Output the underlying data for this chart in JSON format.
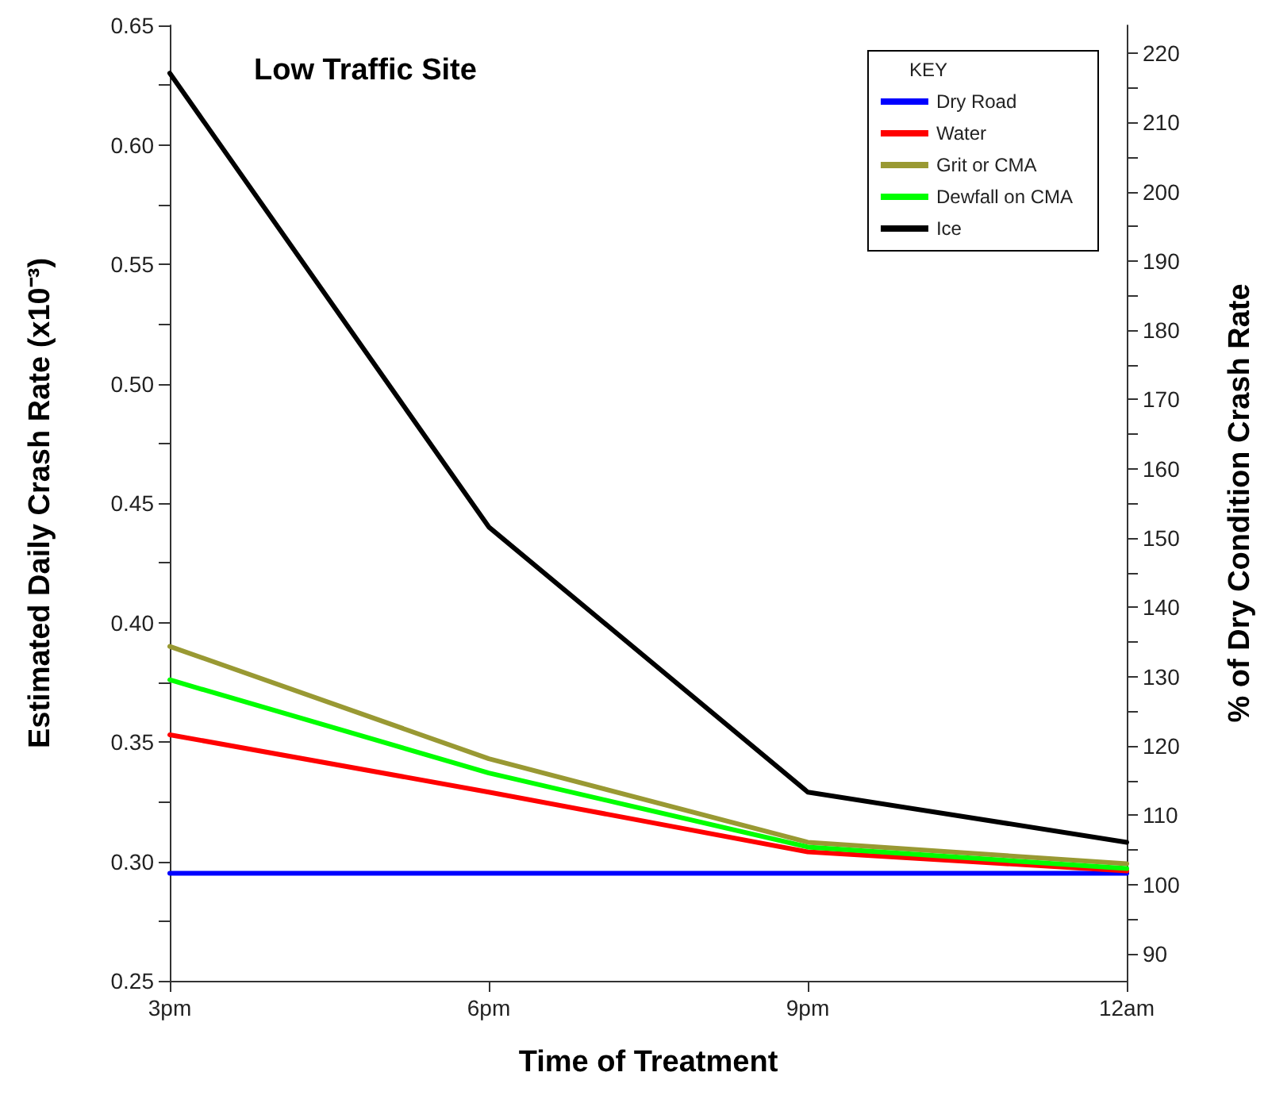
{
  "chart_data": {
    "type": "line",
    "title": "Low Traffic Site",
    "xlabel": "Time of Treatment",
    "ylabel": "Estimated Daily Crash Rate (x10⁻³)",
    "y2label": "% of Dry Condition Crash Rate",
    "legend_title": "KEY",
    "categories": [
      "3pm",
      "6pm",
      "9pm",
      "12am"
    ],
    "series": [
      {
        "name": "Dry Road",
        "color": "#0000ff",
        "values": [
          0.295,
          0.295,
          0.295,
          0.295
        ]
      },
      {
        "name": "Water",
        "color": "#ff0000",
        "values": [
          0.353,
          0.329,
          0.304,
          0.296
        ]
      },
      {
        "name": "Grit or CMA",
        "color": "#999933",
        "values": [
          0.39,
          0.343,
          0.308,
          0.299
        ]
      },
      {
        "name": "Dewfall on CMA",
        "color": "#00ff00",
        "values": [
          0.376,
          0.337,
          0.306,
          0.297
        ]
      },
      {
        "name": "Ice",
        "color": "#000000",
        "values": [
          0.63,
          0.44,
          0.329,
          0.308
        ]
      }
    ],
    "ylim": [
      0.25,
      0.65
    ],
    "yticks": [
      {
        "value": 0.25,
        "label": "0.25"
      },
      {
        "value": 0.275,
        "label": null
      },
      {
        "value": 0.3,
        "label": "0.30"
      },
      {
        "value": 0.325,
        "label": null
      },
      {
        "value": 0.35,
        "label": "0.35"
      },
      {
        "value": 0.375,
        "label": null
      },
      {
        "value": 0.4,
        "label": "0.40"
      },
      {
        "value": 0.425,
        "label": null
      },
      {
        "value": 0.45,
        "label": "0.45"
      },
      {
        "value": 0.475,
        "label": null
      },
      {
        "value": 0.5,
        "label": "0.50"
      },
      {
        "value": 0.525,
        "label": null
      },
      {
        "value": 0.55,
        "label": "0.55"
      },
      {
        "value": 0.575,
        "label": null
      },
      {
        "value": 0.6,
        "label": "0.60"
      },
      {
        "value": 0.625,
        "label": null
      },
      {
        "value": 0.65,
        "label": "0.65"
      }
    ],
    "y2lim": [
      86.1,
      224
    ],
    "y2ticks": [
      90,
      {
        "value": 95,
        "label": null
      },
      100,
      {
        "value": 105,
        "label": null
      },
      110,
      {
        "value": 115,
        "label": null
      },
      120,
      {
        "value": 125,
        "label": null
      },
      130,
      {
        "value": 135,
        "label": null
      },
      140,
      {
        "value": 145,
        "label": null
      },
      150,
      {
        "value": 155,
        "label": null
      },
      160,
      {
        "value": 165,
        "label": null
      },
      170,
      {
        "value": 175,
        "label": null
      },
      180,
      {
        "value": 185,
        "label": null
      },
      190,
      {
        "value": 195,
        "label": null
      },
      200,
      {
        "value": 205,
        "label": null
      },
      210,
      {
        "value": 215,
        "label": null
      },
      220
    ],
    "grid": false,
    "legend": "top right",
    "marker": "none",
    "line_style": "solid"
  }
}
